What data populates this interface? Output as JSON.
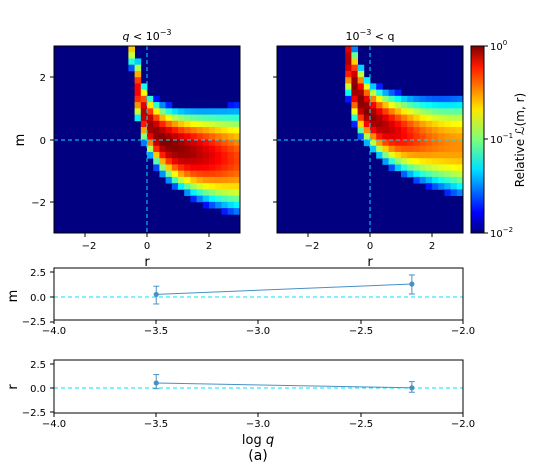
{
  "figure_label": "(a)",
  "chart_data": [
    {
      "type": "heatmap",
      "title": "q < 10⁻³",
      "title_parts": [
        "q",
        " < 10",
        "−3"
      ],
      "xlabel": "r",
      "ylabel": "m",
      "xlim": [
        -3,
        3
      ],
      "ylim": [
        -3,
        3
      ],
      "xticks": [
        -2,
        0,
        2
      ],
      "xtick_labels": [
        "−2",
        "0",
        "2"
      ],
      "yticks": [
        -2,
        0,
        2
      ],
      "ytick_labels": [
        "−2",
        "0",
        "2"
      ],
      "crosshair": {
        "r": 0,
        "m": 0,
        "color": "#00e5ff"
      },
      "peak": {
        "r": 0.55,
        "m": -0.35
      },
      "colorscale": "jet",
      "scale": "log"
    },
    {
      "type": "heatmap",
      "title": "10⁻³ < q",
      "title_parts": [
        "10",
        "−3",
        " < q"
      ],
      "xlabel": "r",
      "xlim": [
        -3,
        3
      ],
      "ylim": [
        -3,
        3
      ],
      "xticks": [
        -2,
        0,
        2
      ],
      "xtick_labels": [
        "−2",
        "0",
        "2"
      ],
      "crosshair": {
        "r": 0,
        "m": 0,
        "color": "#00e5ff"
      },
      "peak": {
        "r": -0.3,
        "m": 1.3
      },
      "colorscale": "jet",
      "scale": "log"
    },
    {
      "type": "colorbar",
      "label": "Relative ℒ(m, r)",
      "scale": "log",
      "range": [
        0.01,
        1
      ],
      "ticks": [
        {
          "value": 1,
          "base": "10",
          "exp": "0"
        },
        {
          "value": 0.1,
          "base": "10",
          "exp": "−1"
        },
        {
          "value": 0.01,
          "base": "10",
          "exp": "−2"
        }
      ]
    },
    {
      "type": "line",
      "ylabel": "m",
      "xlim": [
        -4.0,
        -2.0
      ],
      "ylim": [
        -3,
        3
      ],
      "xticks": [
        -4.0,
        -3.5,
        -3.0,
        -2.5,
        -2.0
      ],
      "xtick_labels": [
        "−4.0",
        "−3.5",
        "−3.0",
        "−2.5",
        "−2.0"
      ],
      "yticks": [
        -2.5,
        0,
        2.5
      ],
      "ytick_labels": [
        "−2.5",
        "0.0",
        "2.5"
      ],
      "reference_line": 0,
      "x": [
        -3.5,
        -2.25
      ],
      "y": [
        -0.05,
        1.15
      ],
      "yerr_low": [
        1.1,
        1.15
      ],
      "yerr_high": [
        0.95,
        1.05
      ],
      "color": "#4a90c4"
    },
    {
      "type": "line",
      "ylabel": "r",
      "xlabel": "log q",
      "xlim": [
        -4.0,
        -2.0
      ],
      "ylim": [
        -3,
        3
      ],
      "xticks": [
        -4.0,
        -3.5,
        -3.0,
        -2.5,
        -2.0
      ],
      "xtick_labels": [
        "−4.0",
        "−3.5",
        "−3.0",
        "−2.5",
        "−2.0"
      ],
      "yticks": [
        -2.5,
        0,
        2.5
      ],
      "ytick_labels": [
        "−2.5",
        "0.0",
        "2.5"
      ],
      "reference_line": 0,
      "x": [
        -3.5,
        -2.25
      ],
      "y": [
        0.4,
        -0.15
      ],
      "yerr_low": [
        0.65,
        0.5
      ],
      "yerr_high": [
        0.95,
        0.7
      ],
      "color": "#4a90c4"
    }
  ]
}
